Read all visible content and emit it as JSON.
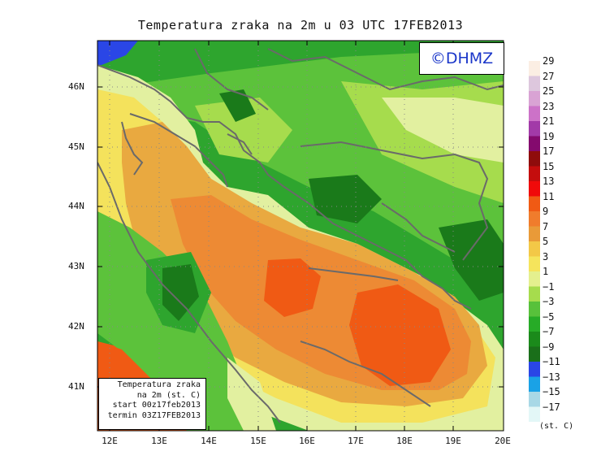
{
  "title": "Temperatura zraka na 2m u 03 UTC 17FEB2013",
  "logo": "©DHMZ",
  "info_box": {
    "line1": "Temperatura zraka",
    "line2": "na 2m (st. C)",
    "line3": "start 00z17feb2013",
    "line4": "termin 03Z17FEB2013"
  },
  "lat_labels": [
    "46N",
    "45N",
    "44N",
    "43N",
    "42N",
    "41N"
  ],
  "lon_labels": [
    "12E",
    "13E",
    "14E",
    "15E",
    "16E",
    "17E",
    "18E",
    "19E",
    "20E"
  ],
  "colorbar": {
    "unit": "(st. C)",
    "labels": [
      "29",
      "27",
      "25",
      "23",
      "21",
      "19",
      "17",
      "15",
      "13",
      "11",
      "9",
      "7",
      "5",
      "3",
      "1",
      "−1",
      "−3",
      "−5",
      "−7",
      "−9",
      "−11",
      "−13",
      "−15",
      "−17"
    ],
    "colors": [
      "#fbeee3",
      "#ddc7dd",
      "#d9a3d4",
      "#cc72c8",
      "#a23aa8",
      "#840a6e",
      "#8f0c0c",
      "#c40d0d",
      "#f00a0a",
      "#f05a14",
      "#f07c2c",
      "#e99a38",
      "#f3c847",
      "#f5e45c",
      "#e4f08e",
      "#a6dc4d",
      "#58c13b",
      "#27ab27",
      "#1b8a1b",
      "#1a6f1a",
      "#2a46e6",
      "#1aa2e6",
      "#a8d8e6",
      "#e3f7f7"
    ]
  },
  "field_colors": {
    "deep_green": "#1a7a1a",
    "green": "#2ea52e",
    "mid_green": "#5cc23b",
    "light_green": "#a6dc4d",
    "pale_green": "#e2f0a0",
    "yellow": "#f4e25c",
    "light_orange": "#e9a940",
    "orange": "#ed8a34",
    "red_orange": "#f05a14",
    "blue": "#2a46e6",
    "coast": "#6a6a6a"
  }
}
